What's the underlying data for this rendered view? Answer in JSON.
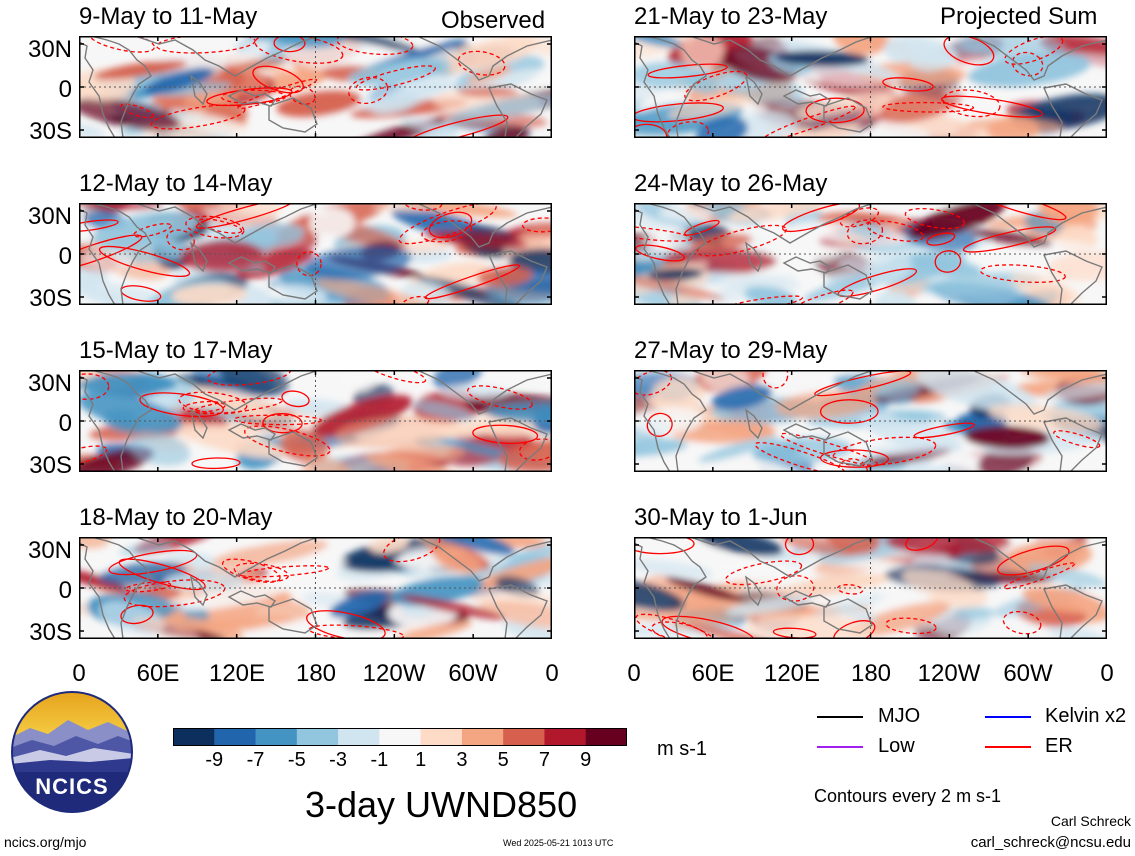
{
  "column_titles": {
    "left": "Observed",
    "right": "Projected Sum"
  },
  "panels_left": [
    {
      "period": "9-May to 11-May"
    },
    {
      "period": "12-May to 14-May"
    },
    {
      "period": "15-May to 17-May"
    },
    {
      "period": "18-May to 20-May"
    }
  ],
  "panels_right": [
    {
      "period": "21-May to 23-May"
    },
    {
      "period": "24-May to 26-May"
    },
    {
      "period": "27-May to 29-May"
    },
    {
      "period": "30-May to 1-Jun"
    }
  ],
  "lat_labels": [
    "30N",
    "0",
    "30S"
  ],
  "lon_labels": [
    "0",
    "60E",
    "120E",
    "180",
    "120W",
    "60W",
    "0"
  ],
  "colorbar": {
    "ticks": [
      "-9",
      "-7",
      "-5",
      "-3",
      "-1",
      "1",
      "3",
      "5",
      "7",
      "9"
    ],
    "colors": [
      "#0d2f5e",
      "#2166ac",
      "#4393c3",
      "#92c5de",
      "#d1e5f0",
      "#f7f7f7",
      "#fddbc7",
      "#f4a582",
      "#d6604d",
      "#b2182b",
      "#67001f"
    ],
    "units": "m s-1"
  },
  "legend": [
    {
      "label": "MJO",
      "color": "#000000"
    },
    {
      "label": "Kelvin x2",
      "color": "#0000ff"
    },
    {
      "label": "Low",
      "color": "#a020f0"
    },
    {
      "label": "ER",
      "color": "#ff0000"
    }
  ],
  "contour_note": "Contours every 2 m s-1",
  "main_title": "3-day UWND850",
  "logo_text": "NCICS",
  "author": "Carl Schreck",
  "email": "carl_schreck@ncsu.edu",
  "site": "ncics.org/mjo",
  "timestamp": "Wed 2025-05-21 1013 UTC"
}
